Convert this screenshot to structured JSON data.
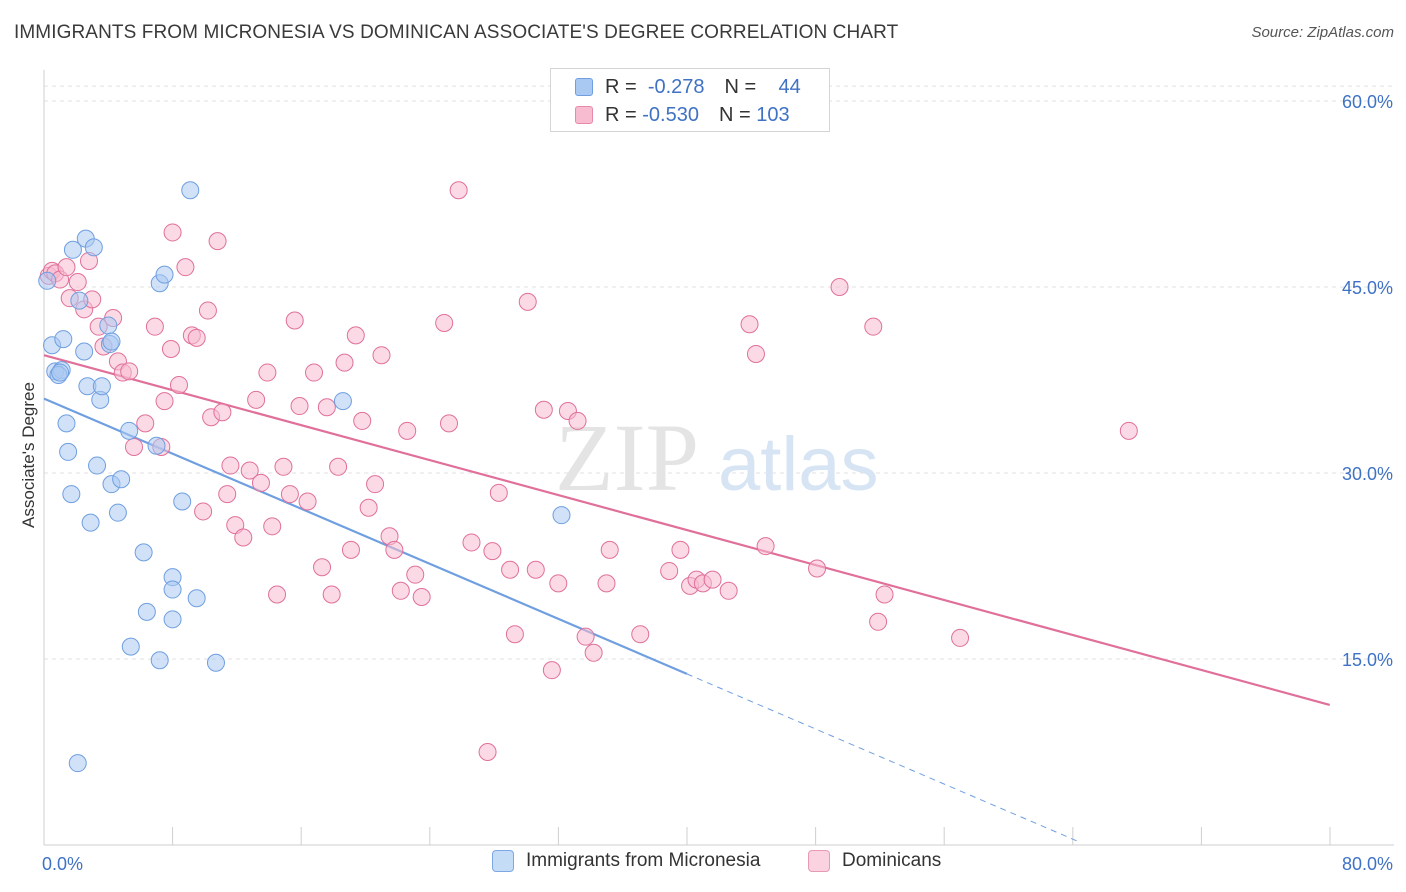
{
  "title": "IMMIGRANTS FROM MICRONESIA VS DOMINICAN ASSOCIATE'S DEGREE CORRELATION CHART",
  "source": "Source: ZipAtlas.com",
  "watermark": {
    "zip": "ZIP",
    "atlas": "atlas"
  },
  "legend": {
    "rows": [
      {
        "r_label": "R =",
        "r_value": "-0.278",
        "n_label": "N =",
        "n_value": "44",
        "color": "#a9c9f2",
        "border": "#6f9fe0"
      },
      {
        "r_label": "R =",
        "r_value": "-0.530",
        "n_label": "N =",
        "n_value": "103",
        "color": "#f7bcd0",
        "border": "#e68aa8"
      }
    ]
  },
  "bottom_legend": [
    {
      "label": "Immigrants from Micronesia",
      "color": "#c5dcf7",
      "border": "#7ea8e3"
    },
    {
      "label": "Dominicans",
      "color": "#fbd3e0",
      "border": "#e89ab4"
    }
  ],
  "chart_data": {
    "type": "scatter",
    "title": "IMMIGRANTS FROM MICRONESIA VS DOMINICAN ASSOCIATE'S DEGREE CORRELATION CHART",
    "xlabel": "",
    "ylabel": "Associate's Degree",
    "xlim": [
      0,
      84
    ],
    "ylim": [
      0,
      62.5
    ],
    "x_tick_labels": [
      {
        "value": 0,
        "label": "0.0%"
      },
      {
        "value": 80,
        "label": "80.0%"
      }
    ],
    "y_ticks": [
      {
        "value": 15,
        "label": "15.0%"
      },
      {
        "value": 30,
        "label": "30.0%"
      },
      {
        "value": 45,
        "label": "45.0%"
      },
      {
        "value": 60,
        "label": "60.0%"
      }
    ],
    "series": [
      {
        "name": "Immigrants from Micronesia",
        "color": "#6f9fe0",
        "fill": "#a9c9f2",
        "trend": {
          "x0": 0,
          "y0": 36.0,
          "x1": 40,
          "y1": 13.8,
          "dash_to_x": 64.5
        },
        "points": [
          [
            0.2,
            45.5
          ],
          [
            0.5,
            40.3
          ],
          [
            0.7,
            38.2
          ],
          [
            1.1,
            38.3
          ],
          [
            0.9,
            37.9
          ],
          [
            1.2,
            40.8
          ],
          [
            1.4,
            34.0
          ],
          [
            1.5,
            31.7
          ],
          [
            1.7,
            28.3
          ],
          [
            1.8,
            48.0
          ],
          [
            2.2,
            43.9
          ],
          [
            2.6,
            48.9
          ],
          [
            2.5,
            39.8
          ],
          [
            3.1,
            48.2
          ],
          [
            2.7,
            37.0
          ],
          [
            2.9,
            26.0
          ],
          [
            3.3,
            30.6
          ],
          [
            3.5,
            35.9
          ],
          [
            3.6,
            37.0
          ],
          [
            4.1,
            40.4
          ],
          [
            4.0,
            41.9
          ],
          [
            4.2,
            29.1
          ],
          [
            4.6,
            26.8
          ],
          [
            4.8,
            29.5
          ],
          [
            5.3,
            33.4
          ],
          [
            6.2,
            23.6
          ],
          [
            6.4,
            18.8
          ],
          [
            5.4,
            16.0
          ],
          [
            7.0,
            32.2
          ],
          [
            7.2,
            45.3
          ],
          [
            7.5,
            46.0
          ],
          [
            7.2,
            14.9
          ],
          [
            8.0,
            21.6
          ],
          [
            8.0,
            20.6
          ],
          [
            8.0,
            18.2
          ],
          [
            8.6,
            27.7
          ],
          [
            9.1,
            52.8
          ],
          [
            9.5,
            19.9
          ],
          [
            10.7,
            14.7
          ],
          [
            18.6,
            35.8
          ],
          [
            32.2,
            26.6
          ],
          [
            2.1,
            6.6
          ],
          [
            1.0,
            38.1
          ],
          [
            4.2,
            40.6
          ]
        ]
      },
      {
        "name": "Dominicans",
        "color": "#e0709a",
        "fill": "#f7bcd0",
        "trend": {
          "x0": 0,
          "y0": 39.5,
          "x1": 80,
          "y1": 11.3
        },
        "points": [
          [
            0.3,
            45.9
          ],
          [
            0.5,
            46.3
          ],
          [
            0.7,
            46.1
          ],
          [
            1.0,
            45.6
          ],
          [
            1.4,
            46.6
          ],
          [
            1.6,
            44.1
          ],
          [
            2.1,
            45.4
          ],
          [
            2.5,
            43.2
          ],
          [
            2.8,
            47.1
          ],
          [
            3.0,
            44.0
          ],
          [
            3.4,
            41.8
          ],
          [
            3.7,
            40.2
          ],
          [
            4.3,
            42.5
          ],
          [
            4.6,
            39.0
          ],
          [
            4.9,
            38.1
          ],
          [
            5.3,
            38.2
          ],
          [
            5.6,
            32.1
          ],
          [
            6.3,
            34.0
          ],
          [
            6.9,
            41.8
          ],
          [
            7.3,
            32.1
          ],
          [
            7.5,
            35.8
          ],
          [
            7.9,
            40.0
          ],
          [
            8.0,
            49.4
          ],
          [
            8.4,
            37.1
          ],
          [
            8.8,
            46.6
          ],
          [
            9.2,
            41.1
          ],
          [
            9.5,
            40.9
          ],
          [
            9.9,
            26.9
          ],
          [
            10.2,
            43.1
          ],
          [
            10.4,
            34.5
          ],
          [
            10.8,
            48.7
          ],
          [
            11.1,
            34.9
          ],
          [
            11.4,
            28.3
          ],
          [
            11.6,
            30.6
          ],
          [
            11.9,
            25.8
          ],
          [
            12.4,
            24.8
          ],
          [
            12.8,
            30.2
          ],
          [
            13.2,
            35.9
          ],
          [
            13.5,
            29.2
          ],
          [
            13.9,
            38.1
          ],
          [
            14.2,
            25.7
          ],
          [
            14.5,
            20.2
          ],
          [
            14.9,
            30.5
          ],
          [
            15.3,
            28.3
          ],
          [
            15.6,
            42.3
          ],
          [
            15.9,
            35.4
          ],
          [
            16.4,
            27.7
          ],
          [
            16.8,
            38.1
          ],
          [
            17.3,
            22.4
          ],
          [
            17.6,
            35.3
          ],
          [
            17.9,
            20.2
          ],
          [
            18.3,
            30.5
          ],
          [
            18.7,
            38.9
          ],
          [
            19.1,
            23.8
          ],
          [
            19.4,
            41.1
          ],
          [
            19.8,
            34.2
          ],
          [
            20.2,
            27.2
          ],
          [
            20.6,
            29.1
          ],
          [
            21.0,
            39.5
          ],
          [
            21.5,
            24.9
          ],
          [
            21.8,
            23.8
          ],
          [
            22.2,
            20.5
          ],
          [
            22.6,
            33.4
          ],
          [
            23.1,
            21.8
          ],
          [
            23.5,
            20.0
          ],
          [
            24.9,
            42.1
          ],
          [
            25.2,
            34.0
          ],
          [
            25.8,
            52.8
          ],
          [
            26.6,
            24.4
          ],
          [
            27.6,
            7.5
          ],
          [
            27.9,
            23.7
          ],
          [
            28.3,
            28.4
          ],
          [
            29.0,
            22.2
          ],
          [
            29.3,
            17.0
          ],
          [
            30.1,
            43.8
          ],
          [
            30.6,
            22.2
          ],
          [
            31.1,
            35.1
          ],
          [
            31.6,
            14.1
          ],
          [
            32.0,
            21.1
          ],
          [
            32.6,
            35.0
          ],
          [
            33.2,
            34.2
          ],
          [
            33.7,
            16.8
          ],
          [
            34.2,
            15.5
          ],
          [
            35.0,
            21.1
          ],
          [
            35.2,
            23.8
          ],
          [
            37.1,
            17.0
          ],
          [
            38.9,
            22.1
          ],
          [
            39.6,
            23.8
          ],
          [
            40.2,
            20.9
          ],
          [
            40.6,
            21.4
          ],
          [
            41.0,
            21.1
          ],
          [
            41.6,
            21.4
          ],
          [
            42.6,
            20.5
          ],
          [
            43.9,
            42.0
          ],
          [
            44.3,
            39.6
          ],
          [
            44.9,
            24.1
          ],
          [
            48.1,
            22.3
          ],
          [
            49.5,
            45.0
          ],
          [
            51.6,
            41.8
          ],
          [
            51.9,
            18.0
          ],
          [
            52.3,
            20.2
          ],
          [
            57.0,
            16.7
          ],
          [
            67.5,
            33.4
          ]
        ]
      }
    ]
  }
}
